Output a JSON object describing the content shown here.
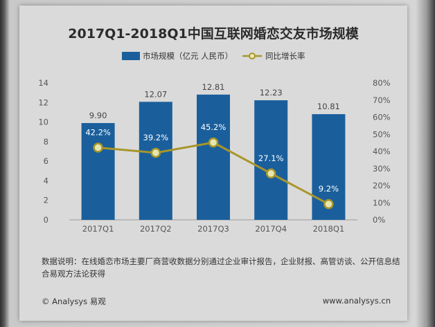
{
  "chart_data": {
    "type": "bar",
    "title": "2017Q1-2018Q1中国互联网婚恋交友市场规模",
    "categories": [
      "2017Q1",
      "2017Q2",
      "2017Q3",
      "2017Q4",
      "2018Q1"
    ],
    "series": [
      {
        "name": "市场规模（亿元 人民币）",
        "type": "bar",
        "axis": "left",
        "values": [
          9.9,
          12.07,
          12.81,
          12.23,
          10.81
        ],
        "labels": [
          "9.90",
          "12.07",
          "12.81",
          "12.23",
          "10.81"
        ],
        "color": "#1a5f9c"
      },
      {
        "name": "同比增长率",
        "type": "line",
        "axis": "right",
        "values": [
          42.2,
          39.2,
          45.2,
          27.1,
          9.2
        ],
        "labels": [
          "42.2%",
          "39.2%",
          "45.2%",
          "27.1%",
          "9.2%"
        ],
        "color": "#a8962a"
      }
    ],
    "y_left": {
      "ylim": [
        0,
        14
      ],
      "ticks": [
        "0",
        "2",
        "4",
        "6",
        "8",
        "10",
        "12",
        "14"
      ]
    },
    "y_right": {
      "ylim": [
        0,
        80
      ],
      "ticks": [
        "0%",
        "10%",
        "20%",
        "30%",
        "40%",
        "50%",
        "60%",
        "70%",
        "80%"
      ]
    },
    "grid": false,
    "legend_position": "top-center"
  },
  "note": "数据说明：在线婚恋市场主要厂商营收数据分别通过企业审计报告，企业财报、高管访谈、公开信息结合易观方法论获得",
  "footer": {
    "copyright": "© Analysys 易观",
    "url": "www.analysys.cn"
  }
}
